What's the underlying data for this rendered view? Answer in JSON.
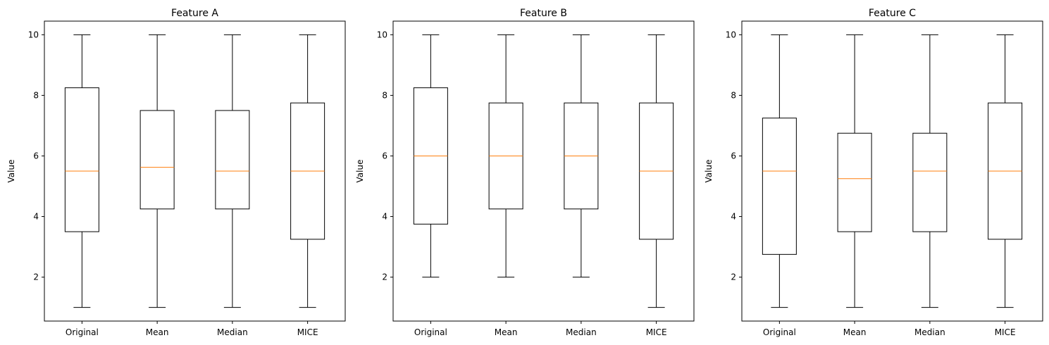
{
  "chart_data": [
    {
      "type": "box",
      "title": "Feature A",
      "ylabel": "Value",
      "ylim": [
        0.55,
        10.45
      ],
      "yticks": [
        2,
        4,
        6,
        8,
        10
      ],
      "categories": [
        "Original",
        "Mean",
        "Median",
        "MICE"
      ],
      "boxes": [
        {
          "whisker_low": 1,
          "q1": 3.5,
          "median": 5.5,
          "q3": 8.25,
          "whisker_high": 10
        },
        {
          "whisker_low": 1,
          "q1": 4.25,
          "median": 5.625,
          "q3": 7.5,
          "whisker_high": 10
        },
        {
          "whisker_low": 1,
          "q1": 4.25,
          "median": 5.5,
          "q3": 7.5,
          "whisker_high": 10
        },
        {
          "whisker_low": 1,
          "q1": 3.25,
          "median": 5.5,
          "q3": 7.75,
          "whisker_high": 10
        }
      ]
    },
    {
      "type": "box",
      "title": "Feature B",
      "ylabel": "Value",
      "ylim": [
        0.55,
        10.45
      ],
      "yticks": [
        2,
        4,
        6,
        8,
        10
      ],
      "categories": [
        "Original",
        "Mean",
        "Median",
        "MICE"
      ],
      "boxes": [
        {
          "whisker_low": 2,
          "q1": 3.75,
          "median": 6,
          "q3": 8.25,
          "whisker_high": 10
        },
        {
          "whisker_low": 2,
          "q1": 4.25,
          "median": 6,
          "q3": 7.75,
          "whisker_high": 10
        },
        {
          "whisker_low": 2,
          "q1": 4.25,
          "median": 6,
          "q3": 7.75,
          "whisker_high": 10
        },
        {
          "whisker_low": 1,
          "q1": 3.25,
          "median": 5.5,
          "q3": 7.75,
          "whisker_high": 10
        }
      ]
    },
    {
      "type": "box",
      "title": "Feature C",
      "ylabel": "Value",
      "ylim": [
        0.55,
        10.45
      ],
      "yticks": [
        2,
        4,
        6,
        8,
        10
      ],
      "categories": [
        "Original",
        "Mean",
        "Median",
        "MICE"
      ],
      "boxes": [
        {
          "whisker_low": 1,
          "q1": 2.75,
          "median": 5.5,
          "q3": 7.25,
          "whisker_high": 10
        },
        {
          "whisker_low": 1,
          "q1": 3.5,
          "median": 5.25,
          "q3": 6.75,
          "whisker_high": 10
        },
        {
          "whisker_low": 1,
          "q1": 3.5,
          "median": 5.5,
          "q3": 6.75,
          "whisker_high": 10
        },
        {
          "whisker_low": 1,
          "q1": 3.25,
          "median": 5.5,
          "q3": 7.75,
          "whisker_high": 10
        }
      ]
    }
  ],
  "style": {
    "box_color": "#000000",
    "median_color": "#ff7f0e",
    "background": "#ffffff"
  }
}
